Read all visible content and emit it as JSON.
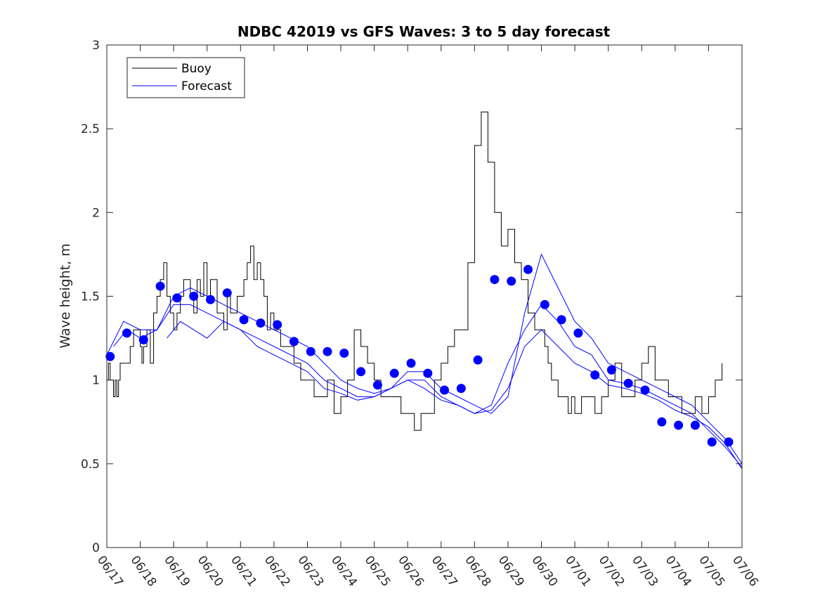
{
  "chart_data": {
    "type": "line",
    "title": "NDBC 42019 vs GFS Waves: 3 to 5 day forecast",
    "xlabel": "",
    "ylabel": "Wave height, m",
    "xlim": [
      0,
      19
    ],
    "ylim": [
      0,
      3
    ],
    "x_ticks": [
      "06/17",
      "06/18",
      "06/19",
      "06/20",
      "06/21",
      "06/22",
      "06/23",
      "06/24",
      "06/25",
      "06/26",
      "06/27",
      "06/28",
      "06/29",
      "06/30",
      "07/01",
      "07/02",
      "07/03",
      "07/04",
      "07/05",
      "07/06"
    ],
    "y_ticks": [
      "0",
      "0.5",
      "1",
      "1.5",
      "2",
      "2.5",
      "3"
    ],
    "grid": false,
    "legend": {
      "position": "top-left",
      "entries": [
        "Buoy",
        "Forecast"
      ]
    },
    "colors": {
      "buoy": "#000000",
      "forecast": "#0000ff",
      "markers": "#0000ff"
    },
    "series": [
      {
        "name": "Buoy",
        "x": [
          0,
          0.05,
          0.1,
          0.15,
          0.2,
          0.25,
          0.3,
          0.35,
          0.4,
          0.5,
          0.6,
          0.7,
          0.8,
          0.9,
          1.0,
          1.05,
          1.1,
          1.2,
          1.3,
          1.4,
          1.5,
          1.6,
          1.7,
          1.8,
          1.9,
          2.0,
          2.1,
          2.2,
          2.3,
          2.4,
          2.5,
          2.6,
          2.7,
          2.8,
          2.9,
          3.0,
          3.1,
          3.2,
          3.3,
          3.4,
          3.5,
          3.6,
          3.7,
          3.8,
          3.9,
          4.0,
          4.1,
          4.2,
          4.3,
          4.4,
          4.5,
          4.6,
          4.7,
          4.8,
          4.9,
          5.0,
          5.2,
          5.4,
          5.6,
          5.8,
          6.0,
          6.2,
          6.4,
          6.6,
          6.8,
          7.0,
          7.2,
          7.4,
          7.6,
          7.8,
          8.0,
          8.2,
          8.4,
          8.6,
          8.8,
          9.0,
          9.2,
          9.4,
          9.6,
          9.8,
          10.0,
          10.2,
          10.4,
          10.6,
          10.8,
          11.0,
          11.2,
          11.4,
          11.6,
          11.8,
          12.0,
          12.2,
          12.4,
          12.6,
          12.8,
          13.0,
          13.1,
          13.2,
          13.3,
          13.4,
          13.5,
          13.6,
          13.7,
          13.8,
          13.9,
          14.0,
          14.2,
          14.4,
          14.6,
          14.8,
          15.0,
          15.2,
          15.4,
          15.6,
          15.8,
          16.0,
          16.2,
          16.4,
          16.6,
          16.8,
          17.0,
          17.2,
          17.4,
          17.6,
          17.8,
          18.0,
          18.2,
          18.4
        ],
        "values": [
          1.0,
          1.1,
          1.0,
          1.0,
          0.9,
          1.0,
          0.9,
          1.0,
          1.1,
          1.1,
          1.1,
          1.2,
          1.3,
          1.3,
          1.2,
          1.1,
          1.2,
          1.3,
          1.1,
          1.4,
          1.5,
          1.6,
          1.7,
          1.5,
          1.4,
          1.3,
          1.4,
          1.5,
          1.6,
          1.6,
          1.5,
          1.4,
          1.6,
          1.5,
          1.7,
          1.5,
          1.6,
          1.6,
          1.4,
          1.4,
          1.3,
          1.5,
          1.4,
          1.4,
          1.5,
          1.5,
          1.6,
          1.7,
          1.8,
          1.6,
          1.7,
          1.6,
          1.5,
          1.3,
          1.4,
          1.3,
          1.2,
          1.2,
          1.1,
          1.0,
          1.0,
          0.9,
          0.9,
          1.0,
          0.8,
          0.9,
          1.0,
          1.3,
          1.2,
          1.1,
          1.0,
          0.9,
          0.9,
          0.9,
          0.8,
          0.8,
          0.7,
          0.8,
          0.8,
          1.0,
          1.1,
          1.2,
          1.3,
          1.3,
          1.7,
          2.4,
          2.6,
          2.3,
          2.0,
          1.8,
          1.9,
          1.7,
          1.6,
          1.4,
          1.3,
          1.3,
          1.2,
          1.1,
          1.0,
          1.0,
          0.9,
          0.9,
          0.9,
          0.8,
          0.9,
          0.8,
          0.9,
          0.9,
          0.8,
          0.9,
          1.0,
          1.1,
          0.9,
          0.9,
          1.0,
          1.1,
          1.2,
          1.0,
          1.0,
          0.9,
          0.9,
          0.8,
          0.8,
          0.9,
          0.8,
          0.9,
          1.0,
          1.1
        ]
      },
      {
        "name": "Forecast",
        "x": [
          0,
          0.5,
          1,
          1.5,
          2,
          2.5,
          3,
          3.5,
          4,
          4.5,
          5,
          5.5,
          6,
          6.5,
          7,
          7.5,
          8,
          8.5,
          9,
          9.5,
          10,
          10.5,
          11,
          11.5,
          12,
          12.5,
          13,
          13.5,
          14,
          14.5,
          15,
          15.5,
          16,
          16.5,
          17,
          17.5,
          18,
          18.5,
          19
        ],
        "values": [
          1.15,
          1.35,
          1.3,
          1.3,
          1.5,
          1.55,
          1.5,
          1.45,
          1.4,
          1.35,
          1.3,
          1.25,
          1.2,
          1.1,
          1.0,
          0.95,
          0.92,
          0.95,
          1.05,
          1.05,
          0.95,
          0.9,
          0.85,
          0.8,
          0.9,
          1.4,
          1.75,
          1.55,
          1.35,
          1.25,
          1.1,
          1.05,
          1.0,
          0.95,
          0.9,
          0.85,
          0.75,
          0.65,
          0.5
        ]
      },
      {
        "name": "",
        "x": [
          0.2,
          0.6,
          1.0,
          1.5,
          2,
          2.5,
          3,
          3.5,
          4,
          4.5,
          5,
          5.5,
          6,
          6.5,
          7,
          7.5,
          8,
          8.5,
          9,
          9.5,
          10,
          10.5,
          11,
          11.5,
          12,
          12.5,
          13,
          13.5,
          14,
          14.5,
          15,
          15.5,
          16,
          16.5,
          17,
          17.5,
          18,
          18.5,
          19
        ],
        "values": [
          1.2,
          1.3,
          1.25,
          1.3,
          1.45,
          1.45,
          1.4,
          1.35,
          1.3,
          1.25,
          1.2,
          1.15,
          1.1,
          1.0,
          0.95,
          0.9,
          0.9,
          0.95,
          1.0,
          1.0,
          0.9,
          0.85,
          0.8,
          0.85,
          1.1,
          1.3,
          1.45,
          1.35,
          1.2,
          1.15,
          1.0,
          0.98,
          0.95,
          0.9,
          0.85,
          0.8,
          0.7,
          0.6,
          0.48
        ]
      },
      {
        "name": "",
        "x": [
          1.8,
          2.2,
          2.6,
          3.0,
          3.5,
          4,
          4.5,
          5,
          5.5,
          6,
          6.5,
          7,
          7.5,
          8,
          8.5,
          9,
          9.5,
          10,
          10.5,
          11,
          11.5,
          12,
          12.5,
          13,
          13.5,
          14,
          14.5,
          15,
          15.5,
          16,
          16.5,
          17,
          17.5,
          18,
          18.5,
          19
        ],
        "values": [
          1.25,
          1.35,
          1.3,
          1.25,
          1.35,
          1.3,
          1.2,
          1.15,
          1.1,
          1.05,
          0.95,
          0.92,
          0.88,
          0.9,
          0.95,
          1.0,
          0.95,
          0.88,
          0.85,
          0.8,
          0.82,
          0.95,
          1.2,
          1.3,
          1.2,
          1.1,
          1.05,
          0.97,
          0.95,
          0.92,
          0.88,
          0.82,
          0.78,
          0.72,
          0.62,
          0.47
        ]
      }
    ],
    "markers": {
      "name": "",
      "x": [
        0.1,
        0.6,
        1.1,
        1.6,
        2.1,
        2.6,
        3.1,
        3.6,
        4.1,
        4.6,
        5.1,
        5.6,
        6.1,
        6.6,
        7.1,
        7.6,
        8.1,
        8.6,
        9.1,
        9.6,
        10.1,
        10.6,
        11.1,
        11.6,
        12.1,
        12.6,
        13.1,
        13.6,
        14.1,
        14.6,
        15.1,
        15.6,
        16.1,
        16.6,
        17.1,
        17.6,
        18.1,
        18.6
      ],
      "values": [
        1.14,
        1.28,
        1.24,
        1.56,
        1.49,
        1.5,
        1.48,
        1.52,
        1.36,
        1.34,
        1.33,
        1.23,
        1.17,
        1.17,
        1.16,
        1.05,
        0.97,
        1.04,
        1.1,
        1.04,
        0.94,
        0.95,
        1.12,
        1.6,
        1.59,
        1.66,
        1.45,
        1.36,
        1.28,
        1.03,
        1.06,
        0.98,
        0.94,
        0.75,
        0.73,
        0.73,
        0.63,
        0.63
      ]
    }
  }
}
